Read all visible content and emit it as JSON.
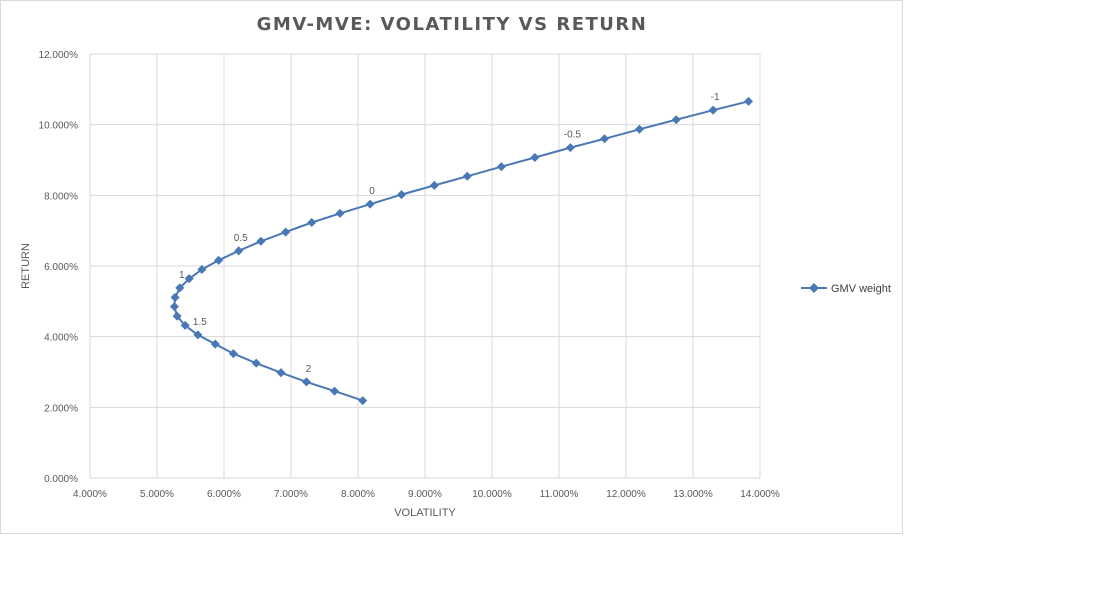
{
  "chart_data": {
    "type": "line",
    "title": "GMV-MVE: VOLATILITY VS RETURN",
    "xlabel": "VOLATILITY",
    "ylabel": "RETURN",
    "xlim": [
      0.04,
      0.14
    ],
    "ylim": [
      0.0,
      0.12
    ],
    "x_ticks": [
      0.04,
      0.05,
      0.06,
      0.07,
      0.08,
      0.09,
      0.1,
      0.11,
      0.12,
      0.13,
      0.14
    ],
    "x_tick_labels": [
      "4.000%",
      "5.000%",
      "6.000%",
      "7.000%",
      "8.000%",
      "9.000%",
      "10.000%",
      "11.000%",
      "12.000%",
      "13.000%",
      "14.000%"
    ],
    "y_ticks": [
      0.0,
      0.02,
      0.04,
      0.06,
      0.08,
      0.1,
      0.12
    ],
    "y_tick_labels": [
      "0.000%",
      "2.000%",
      "4.000%",
      "6.000%",
      "8.000%",
      "10.000%",
      "12.000%"
    ],
    "grid": true,
    "legend_position": "right",
    "series_color": "#4a78b5",
    "grid_color": "#d9d9d9",
    "series": [
      {
        "name": "GMV weight",
        "x": [
          0.1383,
          0.133,
          0.1275,
          0.122,
          0.1168,
          0.1117,
          0.1064,
          0.1014,
          0.0963,
          0.0914,
          0.0865,
          0.0818,
          0.0773,
          0.0731,
          0.0692,
          0.0655,
          0.0622,
          0.0592,
          0.0567,
          0.0548,
          0.0534,
          0.0527,
          0.0526,
          0.053,
          0.0542,
          0.0561,
          0.0587,
          0.0614,
          0.0648,
          0.0685,
          0.0723,
          0.0765,
          0.0807
        ],
        "y": [
          0.1066,
          0.1041,
          0.1014,
          0.0987,
          0.096,
          0.0935,
          0.0907,
          0.0881,
          0.0854,
          0.0828,
          0.0802,
          0.0775,
          0.0749,
          0.0723,
          0.0696,
          0.067,
          0.0643,
          0.0616,
          0.059,
          0.0564,
          0.0538,
          0.0511,
          0.0485,
          0.0458,
          0.0432,
          0.0405,
          0.0379,
          0.0352,
          0.0325,
          0.0298,
          0.0272,
          0.0246,
          0.0219
        ]
      }
    ],
    "point_labels": [
      {
        "index": 1,
        "text": "-1"
      },
      {
        "index": 5,
        "text": "-0.5"
      },
      {
        "index": 11,
        "text": "0"
      },
      {
        "index": 16,
        "text": "0.5"
      },
      {
        "index": 20,
        "text": "1"
      },
      {
        "index": 25,
        "text": "1.5"
      },
      {
        "index": 30,
        "text": "2"
      }
    ]
  }
}
